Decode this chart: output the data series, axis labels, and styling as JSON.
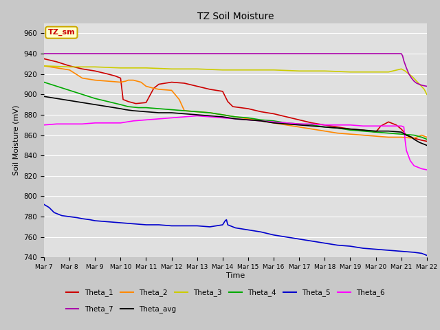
{
  "title": "TZ Soil Moisture",
  "xlabel": "Time",
  "ylabel": "Soil Moisture (mV)",
  "ylim": [
    740,
    970
  ],
  "xlim": [
    0,
    15
  ],
  "x_tick_labels": [
    "Mar 7",
    "Mar 8",
    "Mar 9",
    "Mar 10",
    "Mar 11",
    "Mar 12",
    "Mar 13",
    "Mar 14",
    "Mar 15",
    "Mar 16",
    "Mar 17",
    "Mar 18",
    "Mar 19",
    "Mar 20",
    "Mar 21",
    "Mar 22"
  ],
  "bg_color": "#c8c8c8",
  "plot_bg_color": "#e0e0e0",
  "legend_label": "TZ_sm",
  "legend_box_facecolor": "#ffffcc",
  "legend_box_edgecolor": "#ccaa00",
  "legend_text_color": "#cc0000",
  "series_order": [
    "Theta_1",
    "Theta_2",
    "Theta_3",
    "Theta_4",
    "Theta_5",
    "Theta_6",
    "Theta_7",
    "Theta_avg"
  ],
  "series": {
    "Theta_1": {
      "color": "#cc0000",
      "points": [
        [
          0,
          935
        ],
        [
          0.5,
          932
        ],
        [
          1.0,
          928
        ],
        [
          1.5,
          925
        ],
        [
          2.0,
          923
        ],
        [
          2.5,
          920
        ],
        [
          2.8,
          918
        ],
        [
          3.0,
          916
        ],
        [
          3.1,
          895
        ],
        [
          3.3,
          893
        ],
        [
          3.6,
          891
        ],
        [
          4.0,
          892
        ],
        [
          4.3,
          906
        ],
        [
          4.5,
          910
        ],
        [
          5.0,
          912
        ],
        [
          5.5,
          911
        ],
        [
          6.0,
          908
        ],
        [
          6.5,
          905
        ],
        [
          7.0,
          903
        ],
        [
          7.2,
          893
        ],
        [
          7.4,
          888
        ],
        [
          8.0,
          886
        ],
        [
          8.5,
          883
        ],
        [
          9.0,
          881
        ],
        [
          9.5,
          878
        ],
        [
          10.0,
          875
        ],
        [
          10.5,
          872
        ],
        [
          11.0,
          870
        ],
        [
          11.5,
          868
        ],
        [
          12.0,
          866
        ],
        [
          12.5,
          865
        ],
        [
          13.0,
          863
        ],
        [
          13.2,
          869
        ],
        [
          13.5,
          873
        ],
        [
          13.8,
          870
        ],
        [
          14.0,
          866
        ],
        [
          14.2,
          860
        ],
        [
          14.5,
          857
        ],
        [
          14.8,
          855
        ],
        [
          15.0,
          854
        ]
      ]
    },
    "Theta_2": {
      "color": "#ff8800",
      "points": [
        [
          0,
          928
        ],
        [
          0.5,
          926
        ],
        [
          1.0,
          924
        ],
        [
          1.5,
          916
        ],
        [
          2.0,
          914
        ],
        [
          2.5,
          913
        ],
        [
          3.0,
          912
        ],
        [
          3.2,
          913
        ],
        [
          3.3,
          914
        ],
        [
          3.5,
          914
        ],
        [
          3.8,
          912
        ],
        [
          4.0,
          908
        ],
        [
          4.3,
          906
        ],
        [
          4.5,
          905
        ],
        [
          5.0,
          904
        ],
        [
          5.3,
          895
        ],
        [
          5.5,
          884
        ],
        [
          6.0,
          883
        ],
        [
          6.5,
          882
        ],
        [
          7.0,
          880
        ],
        [
          7.5,
          878
        ],
        [
          8.0,
          876
        ],
        [
          8.5,
          874
        ],
        [
          9.0,
          872
        ],
        [
          9.5,
          870
        ],
        [
          10.0,
          868
        ],
        [
          10.5,
          866
        ],
        [
          11.0,
          864
        ],
        [
          11.5,
          862
        ],
        [
          12.0,
          861
        ],
        [
          12.5,
          860
        ],
        [
          13.0,
          859
        ],
        [
          13.5,
          858
        ],
        [
          14.0,
          858
        ],
        [
          14.5,
          857
        ],
        [
          14.8,
          860
        ],
        [
          15.0,
          858
        ]
      ]
    },
    "Theta_3": {
      "color": "#cccc00",
      "points": [
        [
          0,
          928
        ],
        [
          1.0,
          927
        ],
        [
          2.0,
          927
        ],
        [
          3.0,
          926
        ],
        [
          4.0,
          926
        ],
        [
          5.0,
          925
        ],
        [
          6.0,
          925
        ],
        [
          7.0,
          924
        ],
        [
          8.0,
          924
        ],
        [
          9.0,
          924
        ],
        [
          10.0,
          923
        ],
        [
          11.0,
          923
        ],
        [
          12.0,
          922
        ],
        [
          13.0,
          922
        ],
        [
          13.5,
          922
        ],
        [
          14.0,
          925
        ],
        [
          14.15,
          923
        ],
        [
          14.3,
          920
        ],
        [
          14.45,
          917
        ],
        [
          14.6,
          913
        ],
        [
          14.75,
          909
        ],
        [
          14.9,
          905
        ],
        [
          15.0,
          900
        ]
      ]
    },
    "Theta_4": {
      "color": "#00aa00",
      "points": [
        [
          0,
          912
        ],
        [
          0.5,
          908
        ],
        [
          1.0,
          904
        ],
        [
          1.5,
          900
        ],
        [
          2.0,
          896
        ],
        [
          2.5,
          893
        ],
        [
          3.0,
          890
        ],
        [
          3.3,
          888
        ],
        [
          3.7,
          887
        ],
        [
          4.0,
          887
        ],
        [
          4.5,
          886
        ],
        [
          5.0,
          885
        ],
        [
          5.5,
          884
        ],
        [
          6.0,
          883
        ],
        [
          6.5,
          882
        ],
        [
          7.0,
          880
        ],
        [
          7.5,
          878
        ],
        [
          8.0,
          877
        ],
        [
          8.5,
          875
        ],
        [
          9.0,
          874
        ],
        [
          9.5,
          872
        ],
        [
          10.0,
          871
        ],
        [
          10.5,
          870
        ],
        [
          11.0,
          868
        ],
        [
          11.5,
          867
        ],
        [
          12.0,
          865
        ],
        [
          12.5,
          864
        ],
        [
          13.0,
          863
        ],
        [
          13.5,
          862
        ],
        [
          14.0,
          861
        ],
        [
          14.5,
          860
        ],
        [
          14.8,
          858
        ],
        [
          15.0,
          856
        ]
      ]
    },
    "Theta_5": {
      "color": "#0000cc",
      "points": [
        [
          0,
          792
        ],
        [
          0.2,
          789
        ],
        [
          0.4,
          784
        ],
        [
          0.7,
          781
        ],
        [
          1.0,
          780
        ],
        [
          1.3,
          779
        ],
        [
          1.5,
          778
        ],
        [
          1.8,
          777
        ],
        [
          2.0,
          776
        ],
        [
          2.5,
          775
        ],
        [
          3.0,
          774
        ],
        [
          3.5,
          773
        ],
        [
          4.0,
          772
        ],
        [
          4.5,
          772
        ],
        [
          5.0,
          771
        ],
        [
          5.5,
          771
        ],
        [
          6.0,
          771
        ],
        [
          6.5,
          770
        ],
        [
          7.0,
          772
        ],
        [
          7.1,
          776
        ],
        [
          7.15,
          777
        ],
        [
          7.2,
          772
        ],
        [
          7.5,
          769
        ],
        [
          8.0,
          767
        ],
        [
          8.5,
          765
        ],
        [
          9.0,
          762
        ],
        [
          9.5,
          760
        ],
        [
          10.0,
          758
        ],
        [
          10.5,
          756
        ],
        [
          11.0,
          754
        ],
        [
          11.5,
          752
        ],
        [
          12.0,
          751
        ],
        [
          12.5,
          749
        ],
        [
          13.0,
          748
        ],
        [
          13.5,
          747
        ],
        [
          14.0,
          746
        ],
        [
          14.5,
          745
        ],
        [
          14.8,
          744
        ],
        [
          15.0,
          742
        ]
      ]
    },
    "Theta_6": {
      "color": "#ff00ff",
      "points": [
        [
          0,
          870
        ],
        [
          0.5,
          871
        ],
        [
          1.0,
          871
        ],
        [
          1.5,
          871
        ],
        [
          2.0,
          872
        ],
        [
          2.5,
          872
        ],
        [
          3.0,
          872
        ],
        [
          3.5,
          874
        ],
        [
          4.0,
          875
        ],
        [
          4.5,
          876
        ],
        [
          5.0,
          877
        ],
        [
          5.5,
          878
        ],
        [
          6.0,
          879
        ],
        [
          6.5,
          878
        ],
        [
          7.0,
          877
        ],
        [
          7.5,
          876
        ],
        [
          8.0,
          875
        ],
        [
          8.5,
          874
        ],
        [
          9.0,
          873
        ],
        [
          9.5,
          872
        ],
        [
          10.0,
          871
        ],
        [
          10.5,
          871
        ],
        [
          11.0,
          870
        ],
        [
          11.5,
          870
        ],
        [
          12.0,
          870
        ],
        [
          12.5,
          869
        ],
        [
          13.0,
          869
        ],
        [
          13.5,
          869
        ],
        [
          14.0,
          869
        ],
        [
          14.1,
          868
        ],
        [
          14.15,
          855
        ],
        [
          14.2,
          845
        ],
        [
          14.35,
          835
        ],
        [
          14.5,
          830
        ],
        [
          14.8,
          827
        ],
        [
          15.0,
          826
        ]
      ]
    },
    "Theta_7": {
      "color": "#aa00aa",
      "points": [
        [
          0,
          940
        ],
        [
          1.0,
          940
        ],
        [
          2.0,
          940
        ],
        [
          3.0,
          940
        ],
        [
          4.0,
          940
        ],
        [
          5.0,
          940
        ],
        [
          6.0,
          940
        ],
        [
          7.0,
          940
        ],
        [
          8.0,
          940
        ],
        [
          9.0,
          940
        ],
        [
          10.0,
          940
        ],
        [
          11.0,
          940
        ],
        [
          12.0,
          940
        ],
        [
          13.0,
          940
        ],
        [
          13.5,
          940
        ],
        [
          14.0,
          940
        ],
        [
          14.05,
          938
        ],
        [
          14.1,
          933
        ],
        [
          14.2,
          926
        ],
        [
          14.3,
          920
        ],
        [
          14.4,
          916
        ],
        [
          14.5,
          913
        ],
        [
          14.6,
          911
        ],
        [
          14.7,
          910
        ],
        [
          14.8,
          909
        ],
        [
          15.0,
          908
        ]
      ]
    },
    "Theta_avg": {
      "color": "#000000",
      "points": [
        [
          0,
          898
        ],
        [
          0.5,
          896
        ],
        [
          1.0,
          894
        ],
        [
          1.5,
          892
        ],
        [
          2.0,
          890
        ],
        [
          2.5,
          888
        ],
        [
          3.0,
          886
        ],
        [
          3.2,
          885
        ],
        [
          3.5,
          884
        ],
        [
          4.0,
          883
        ],
        [
          4.5,
          882
        ],
        [
          5.0,
          882
        ],
        [
          5.5,
          881
        ],
        [
          6.0,
          880
        ],
        [
          6.5,
          879
        ],
        [
          7.0,
          878
        ],
        [
          7.5,
          876
        ],
        [
          8.0,
          875
        ],
        [
          8.5,
          874
        ],
        [
          9.0,
          872
        ],
        [
          9.5,
          871
        ],
        [
          10.0,
          870
        ],
        [
          10.5,
          869
        ],
        [
          11.0,
          868
        ],
        [
          11.5,
          867
        ],
        [
          12.0,
          866
        ],
        [
          12.5,
          865
        ],
        [
          13.0,
          864
        ],
        [
          13.5,
          864
        ],
        [
          14.0,
          863
        ],
        [
          14.2,
          860
        ],
        [
          14.4,
          858
        ],
        [
          14.5,
          856
        ],
        [
          14.7,
          853
        ],
        [
          14.9,
          851
        ],
        [
          15.0,
          850
        ]
      ]
    }
  }
}
